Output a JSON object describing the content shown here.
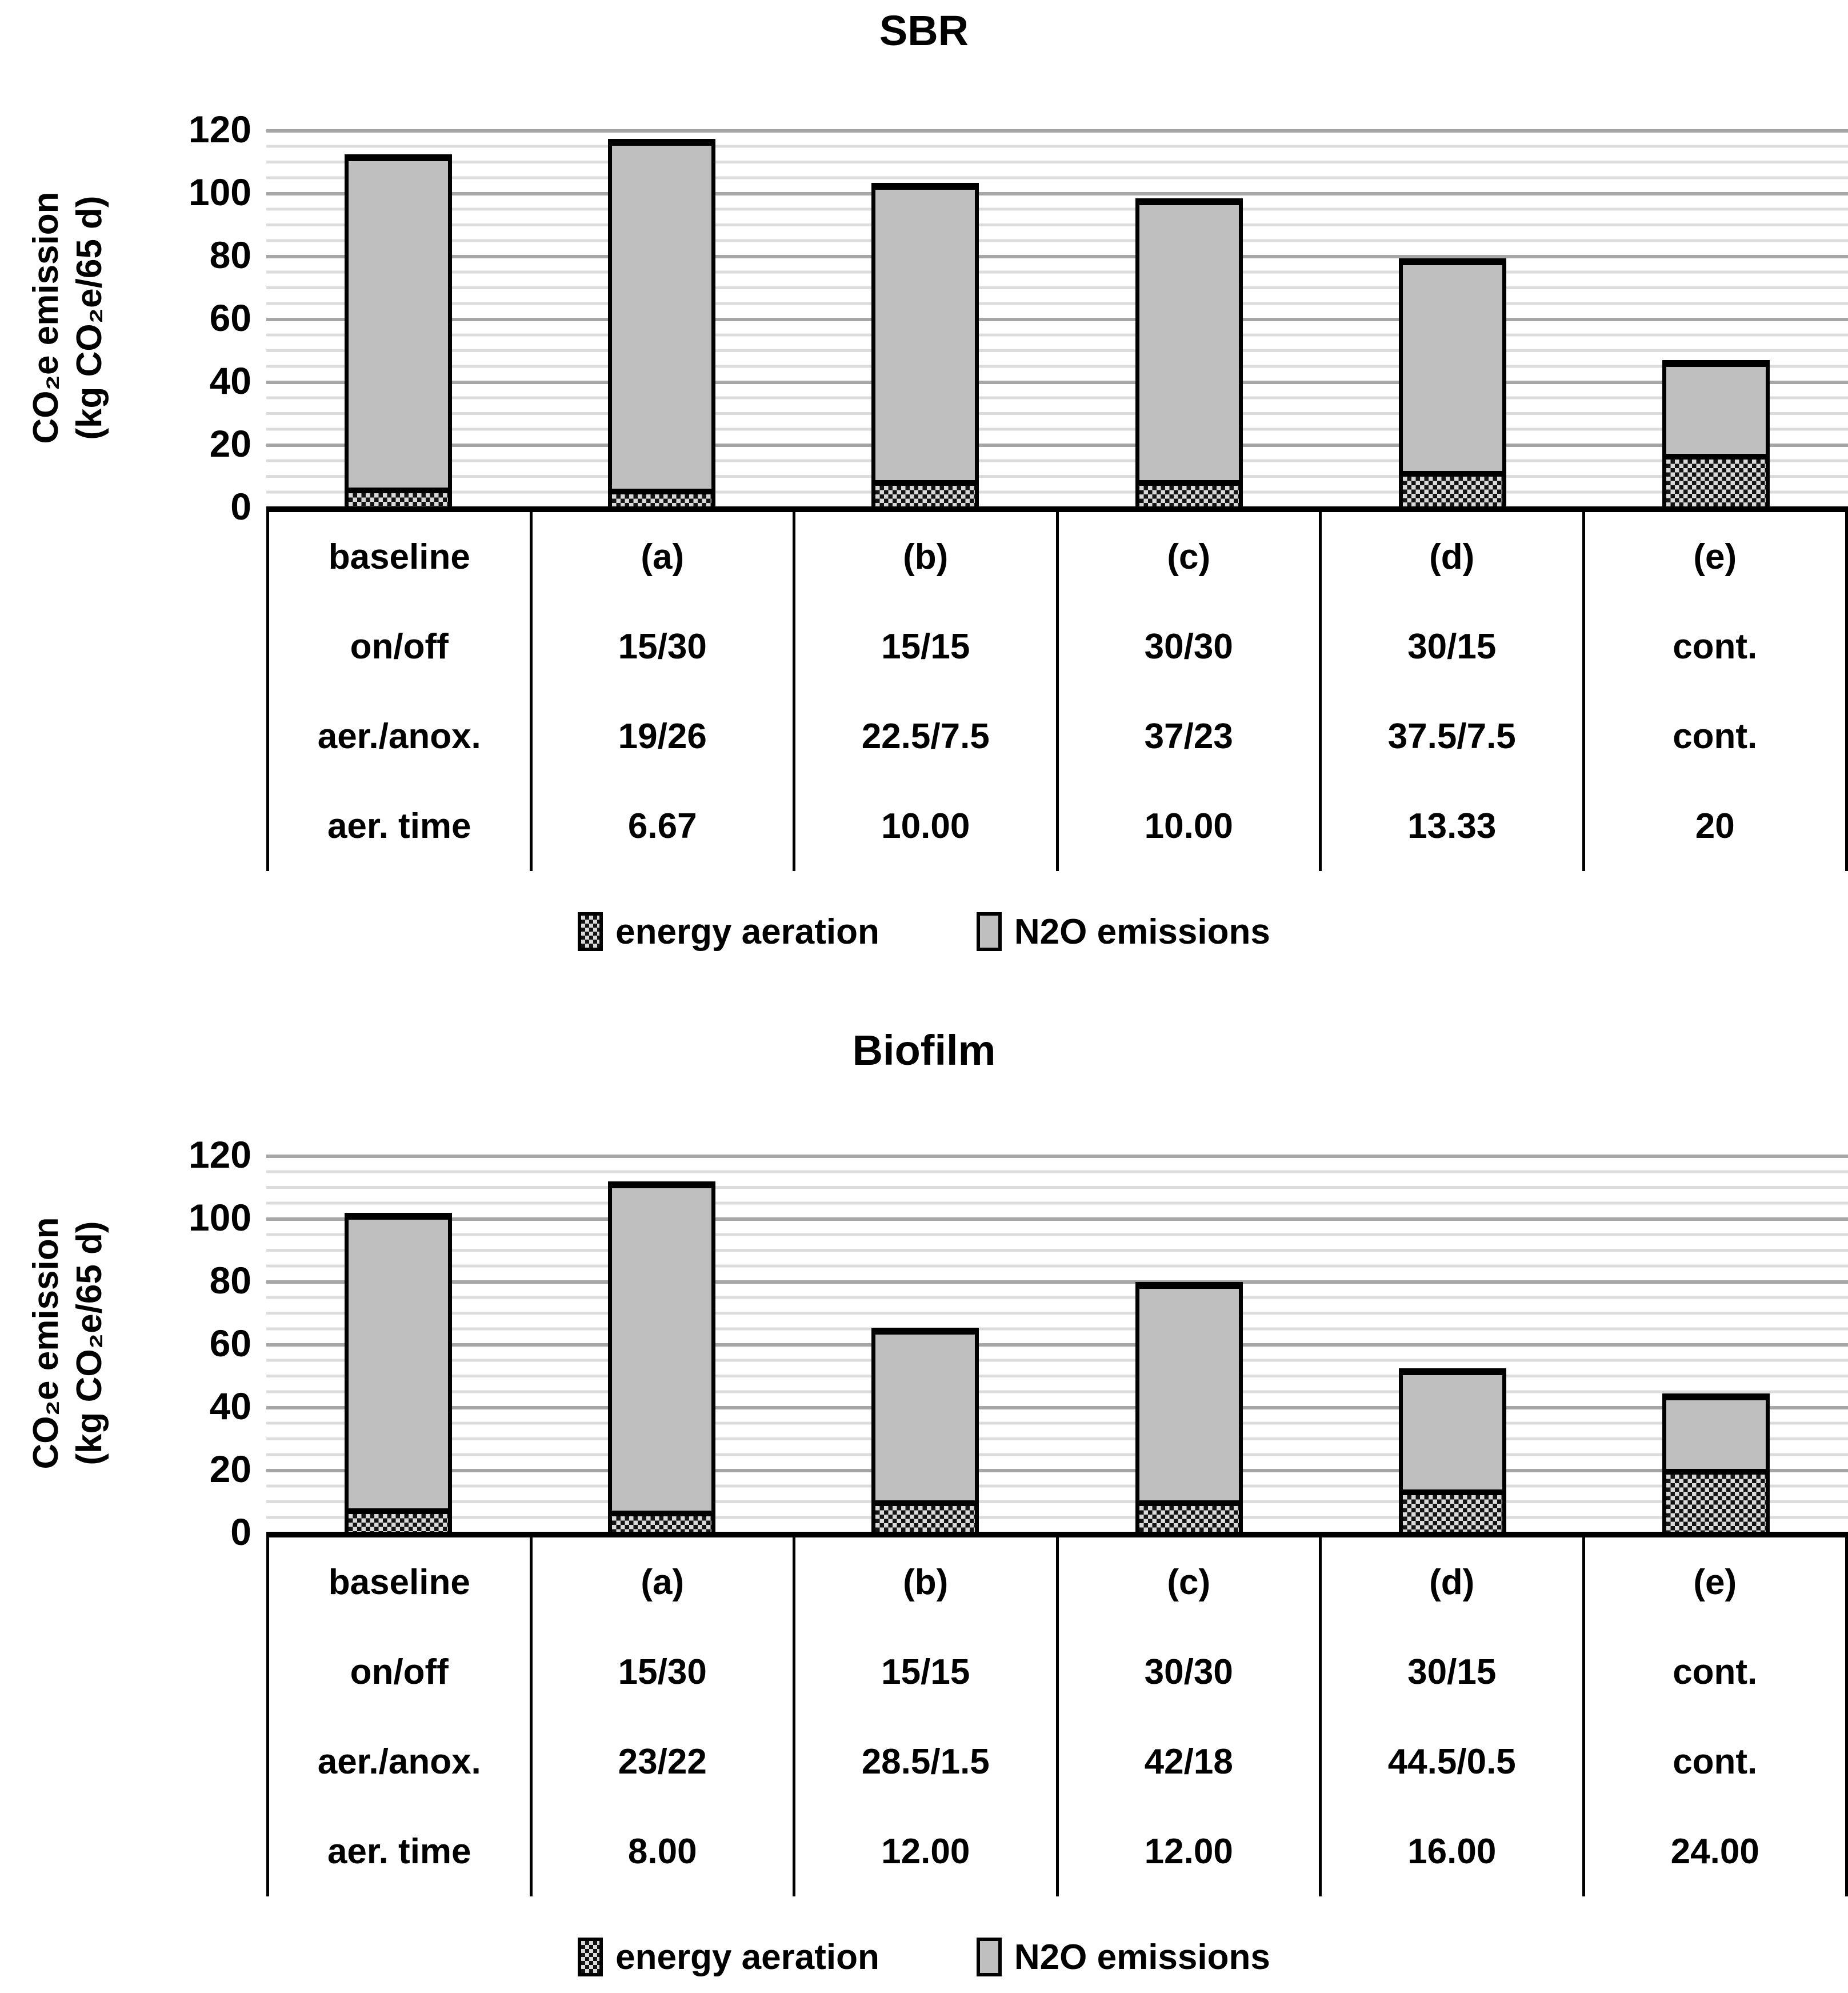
{
  "figure": {
    "colors": {
      "bar_gray": "#bfbfbf",
      "hatch_background": "#d9d9d9",
      "hatch_foreground": "#141414",
      "major_gridline": "#a6a6a6",
      "minor_gridline": "#dcdcdc",
      "axis": "#000000"
    },
    "charts": [
      {
        "title": "SBR",
        "y_axis_label_line1": "CO₂e emission",
        "y_axis_label_line2": "(kg CO₂e/65 d)",
        "chart_data": {
          "type": "bar",
          "stacked": true,
          "title": "SBR",
          "categories": [
            "baseline",
            "(a)",
            "(b)",
            "(c)",
            "(d)",
            "(e)"
          ],
          "series": [
            {
              "name": "energy aeration",
              "pattern": "checker",
              "values": [
                6.0,
                5.6,
                8.4,
                8.4,
                11.2,
                16.8
              ]
            },
            {
              "name": "N2O emissions",
              "pattern": "solid-gray",
              "values": [
                106.0,
                111.4,
                94.6,
                89.6,
                67.8,
                29.7
              ]
            }
          ],
          "totals": [
            112.0,
            117.0,
            103.0,
            98.0,
            79.0,
            46.5
          ],
          "ylabel": "CO₂e emission (kg CO₂e/65 d)",
          "ylim": [
            0,
            120
          ],
          "yticks": [
            120,
            100,
            80,
            60,
            40,
            20,
            0
          ],
          "major_gridline_step": 20,
          "minor_gridline_step": 5,
          "grid": true,
          "legend_position": "bottom"
        },
        "table": {
          "rows": [
            {
              "header": "baseline",
              "cells": [
                "(a)",
                "(b)",
                "(c)",
                "(d)",
                "(e)"
              ]
            },
            {
              "header": "on/off",
              "cells": [
                "15/30",
                "15/15",
                "30/30",
                "30/15",
                "cont."
              ]
            },
            {
              "header": "aer./anox.",
              "cells": [
                "19/26",
                "22.5/7.5",
                "37/23",
                "37.5/7.5",
                "cont."
              ]
            },
            {
              "header": "aer. time",
              "cells": [
                "6.67",
                "10.00",
                "10.00",
                "13.33",
                "20"
              ]
            }
          ]
        },
        "legend": [
          "energy aeration",
          "N2O emissions"
        ]
      },
      {
        "title": "Biofilm",
        "y_axis_label_line1": "CO₂e emission",
        "y_axis_label_line2": "(kg CO₂e/65 d)",
        "chart_data": {
          "type": "bar",
          "stacked": true,
          "title": "Biofilm",
          "categories": [
            "baseline",
            "(a)",
            "(b)",
            "(c)",
            "(d)",
            "(e)"
          ],
          "series": [
            {
              "name": "energy aeration",
              "pattern": "checker",
              "values": [
                7.5,
                6.7,
                10.0,
                10.0,
                13.4,
                20.0
              ]
            },
            {
              "name": "N2O emissions",
              "pattern": "solid-gray",
              "values": [
                94.0,
                104.8,
                55.0,
                69.5,
                38.6,
                24.0
              ]
            }
          ],
          "totals": [
            101.5,
            111.5,
            65.0,
            79.5,
            52.0,
            44.0
          ],
          "ylabel": "CO₂e emission (kg CO₂e/65 d)",
          "ylim": [
            0,
            120
          ],
          "yticks": [
            120,
            100,
            80,
            60,
            40,
            20,
            0
          ],
          "major_gridline_step": 20,
          "minor_gridline_step": 5,
          "grid": true,
          "legend_position": "bottom"
        },
        "table": {
          "rows": [
            {
              "header": "baseline",
              "cells": [
                "(a)",
                "(b)",
                "(c)",
                "(d)",
                "(e)"
              ]
            },
            {
              "header": "on/off",
              "cells": [
                "15/30",
                "15/15",
                "30/30",
                "30/15",
                "cont."
              ]
            },
            {
              "header": "aer./anox.",
              "cells": [
                "23/22",
                "28.5/1.5",
                "42/18",
                "44.5/0.5",
                "cont."
              ]
            },
            {
              "header": "aer. time",
              "cells": [
                "8.00",
                "12.00",
                "12.00",
                "16.00",
                "24.00"
              ]
            }
          ]
        },
        "legend": [
          "energy aeration",
          "N2O emissions"
        ]
      }
    ]
  }
}
